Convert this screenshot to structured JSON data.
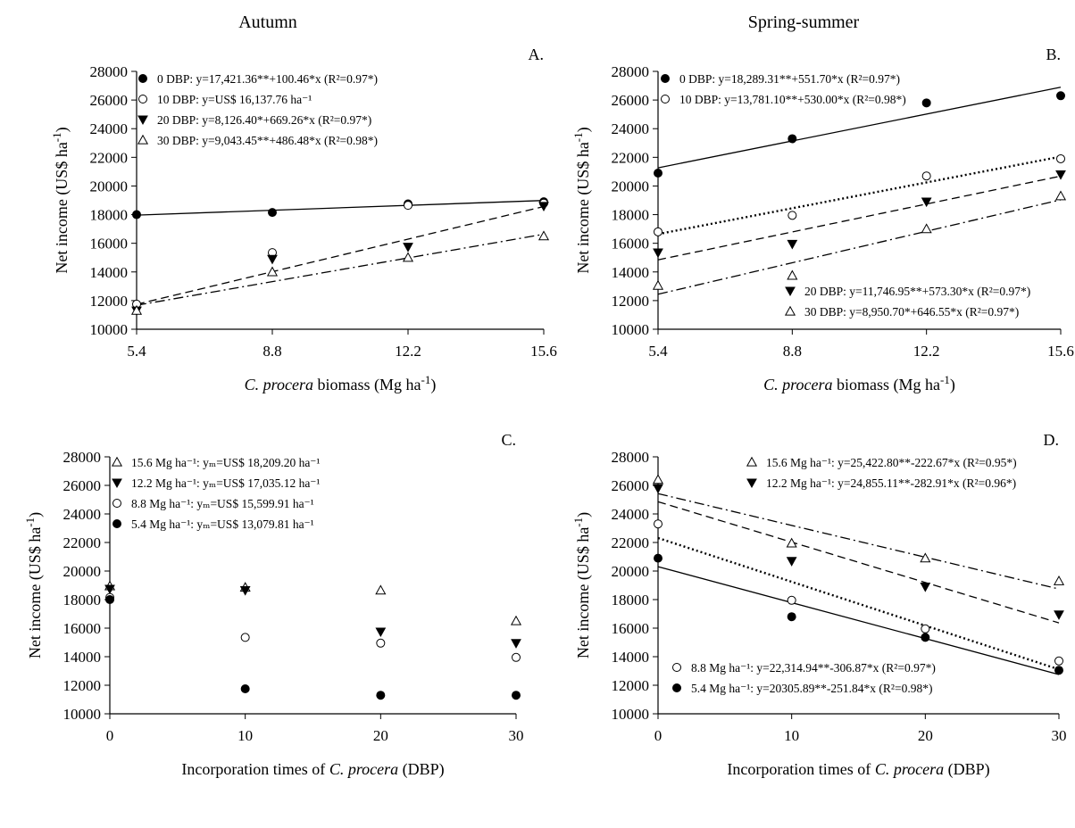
{
  "figure": {
    "column_titles": [
      "Autumn",
      "Spring-summer"
    ]
  },
  "chart_data": [
    {
      "id": "A",
      "panel_label": "A.",
      "type": "scatter",
      "xlabel": "C. procera biomass (Mg ha-1)",
      "ylabel": "Net income (US$ ha-1)",
      "xticks": [
        5.4,
        8.8,
        12.2,
        15.6
      ],
      "xlim": [
        5.4,
        15.6
      ],
      "ylim": [
        10000,
        28000
      ],
      "yticks": [
        10000,
        12000,
        14000,
        16000,
        18000,
        20000,
        22000,
        24000,
        26000,
        28000
      ],
      "legend_position": "top-left",
      "series": [
        {
          "name": "0 DBP",
          "marker": "filled-circle",
          "line": "solid",
          "fit": [
            17421.36,
            100.46
          ],
          "x": [
            5.4,
            8.8,
            12.2,
            15.6
          ],
          "y": [
            18000,
            18150,
            18750,
            18900
          ],
          "legend_text": "0 DBP: y=17,421.36**+100.46*x (R²=0.97*)"
        },
        {
          "name": "10 DBP",
          "marker": "open-circle",
          "line": "none",
          "x": [
            5.4,
            8.8,
            12.2,
            15.6
          ],
          "y": [
            11750,
            15350,
            18650,
            18800
          ],
          "legend_text": "10 DBP: y=US$ 16,137.76 ha⁻¹"
        },
        {
          "name": "20 DBP",
          "marker": "filled-triangle-down",
          "line": "dashed",
          "fit": [
            8126.4,
            669.26
          ],
          "x": [
            5.4,
            8.8,
            12.2,
            15.6
          ],
          "y": [
            11300,
            14900,
            15750,
            18600
          ],
          "legend_text": "20 DBP: y=8,126.40*+669.26*x (R²=0.97*)"
        },
        {
          "name": "30 DBP",
          "marker": "open-triangle-up",
          "line": "dashdot",
          "fit": [
            9043.45,
            486.48
          ],
          "x": [
            5.4,
            8.8,
            12.2,
            15.6
          ],
          "y": [
            11300,
            14000,
            15000,
            16500
          ],
          "legend_text": "30 DBP: y=9,043.45**+486.48*x (R²=0.98*)"
        }
      ]
    },
    {
      "id": "B",
      "panel_label": "B.",
      "type": "scatter",
      "xlabel": "C. procera biomass (Mg ha-1)",
      "ylabel": "Net income (US$ ha-1)",
      "xticks": [
        5.4,
        8.8,
        12.2,
        15.6
      ],
      "xlim": [
        5.4,
        15.6
      ],
      "ylim": [
        10000,
        28000
      ],
      "yticks": [
        10000,
        12000,
        14000,
        16000,
        18000,
        20000,
        22000,
        24000,
        26000,
        28000
      ],
      "legend_position": "top-left and bottom-right",
      "series": [
        {
          "name": "0 DBP",
          "marker": "filled-circle",
          "line": "solid",
          "fit": [
            18289.31,
            551.7
          ],
          "x": [
            5.4,
            8.8,
            12.2,
            15.6
          ],
          "y": [
            20900,
            23300,
            25800,
            26300
          ],
          "legend_text": "0 DBP: y=18,289.31**+551.70*x (R²=0.97*)"
        },
        {
          "name": "10 DBP",
          "marker": "open-circle",
          "line": "dotted",
          "fit": [
            13781.1,
            530.0
          ],
          "x": [
            5.4,
            8.8,
            12.2,
            15.6
          ],
          "y": [
            16800,
            17950,
            20700,
            21900
          ],
          "legend_text": "10 DBP: y=13,781.10**+530.00*x (R²=0.98*)"
        },
        {
          "name": "20 DBP",
          "marker": "filled-triangle-down",
          "line": "dashed",
          "fit": [
            11746.95,
            573.3
          ],
          "x": [
            5.4,
            8.8,
            12.2,
            15.6
          ],
          "y": [
            15350,
            15950,
            18900,
            20800
          ],
          "legend_text": "20 DBP: y=11,746.95**+573.30*x (R²=0.97*)"
        },
        {
          "name": "30 DBP",
          "marker": "open-triangle-up",
          "line": "dashdot",
          "fit": [
            8950.7,
            646.55
          ],
          "x": [
            5.4,
            8.8,
            12.2,
            15.6
          ],
          "y": [
            13050,
            13750,
            17000,
            19300
          ],
          "legend_text": "30 DBP: y=8,950.70*+646.55*x (R²=0.97*)"
        }
      ]
    },
    {
      "id": "C",
      "panel_label": "C.",
      "type": "scatter",
      "xlabel": "Incorporation times of C. procera (DBP)",
      "ylabel": "Net income (US$ ha-1)",
      "xticks": [
        0,
        10,
        20,
        30
      ],
      "xlim": [
        0,
        30
      ],
      "ylim": [
        10000,
        28000
      ],
      "yticks": [
        10000,
        12000,
        14000,
        16000,
        18000,
        20000,
        22000,
        24000,
        26000,
        28000
      ],
      "legend_position": "top-left",
      "series": [
        {
          "name": "15.6 Mg ha-1",
          "marker": "open-triangle-up",
          "line": "none",
          "x": [
            0,
            10,
            20,
            30
          ],
          "y": [
            18950,
            18850,
            18650,
            16500
          ],
          "legend_text": "15.6 Mg ha⁻¹: yₘ=US$ 18,209.20 ha⁻¹"
        },
        {
          "name": "12.2 Mg ha-1",
          "marker": "filled-triangle-down",
          "line": "none",
          "x": [
            0,
            10,
            20,
            30
          ],
          "y": [
            18750,
            18650,
            15750,
            14950
          ],
          "legend_text": "12.2 Mg ha⁻¹: yₘ=US$ 17,035.12 ha⁻¹"
        },
        {
          "name": "8.8 Mg ha-1",
          "marker": "open-circle",
          "line": "none",
          "x": [
            0,
            10,
            20,
            30
          ],
          "y": [
            18150,
            15350,
            14950,
            13950
          ],
          "legend_text": "8.8 Mg ha⁻¹: yₘ=US$ 15,599.91 ha⁻¹"
        },
        {
          "name": "5.4 Mg ha-1",
          "marker": "filled-circle",
          "line": "none",
          "x": [
            0,
            10,
            20,
            30
          ],
          "y": [
            18000,
            11750,
            11300,
            11300
          ],
          "legend_text": "5.4 Mg ha⁻¹: yₘ=US$ 13,079.81 ha⁻¹"
        }
      ]
    },
    {
      "id": "D",
      "panel_label": "D.",
      "type": "scatter",
      "xlabel": "Incorporation times of C. procera (DBP)",
      "ylabel": "Net income (US$ ha-1)",
      "xticks": [
        0,
        10,
        20,
        30
      ],
      "xlim": [
        0,
        30
      ],
      "ylim": [
        10000,
        28000
      ],
      "yticks": [
        10000,
        12000,
        14000,
        16000,
        18000,
        20000,
        22000,
        24000,
        26000,
        28000
      ],
      "legend_position": "top-right and bottom-left",
      "series": [
        {
          "name": "15.6 Mg ha-1",
          "marker": "open-triangle-up",
          "line": "dashdot",
          "fit": [
            25422.8,
            -222.67
          ],
          "x": [
            0,
            10,
            20,
            30
          ],
          "y": [
            26400,
            21950,
            20900,
            19300
          ],
          "legend_text": "15.6 Mg ha⁻¹: y=25,422.80**-222.67*x (R²=0.95*)"
        },
        {
          "name": "12.2 Mg ha-1",
          "marker": "filled-triangle-down",
          "line": "dashed",
          "fit": [
            24855.11,
            -282.91
          ],
          "x": [
            0,
            10,
            20,
            30
          ],
          "y": [
            25800,
            20700,
            18900,
            16950
          ],
          "legend_text": "12.2 Mg ha⁻¹: y=24,855.11**-282.91*x (R²=0.96*)"
        },
        {
          "name": "8.8 Mg ha-1",
          "marker": "open-circle",
          "line": "dotted",
          "fit": [
            22314.94,
            -306.87
          ],
          "x": [
            0,
            10,
            20,
            30
          ],
          "y": [
            23300,
            17950,
            15950,
            13700
          ],
          "legend_text": "8.8 Mg ha⁻¹: y=22,314.94**-306.87*x (R²=0.97*)"
        },
        {
          "name": "5.4 Mg ha-1",
          "marker": "filled-circle",
          "line": "solid",
          "fit": [
            20305.89,
            -251.84
          ],
          "x": [
            0,
            10,
            20,
            30
          ],
          "y": [
            20900,
            16800,
            15350,
            13050
          ],
          "legend_text": "5.4 Mg ha⁻¹: y=20305.89**-251.84*x (R²=0.98*)"
        }
      ]
    }
  ]
}
